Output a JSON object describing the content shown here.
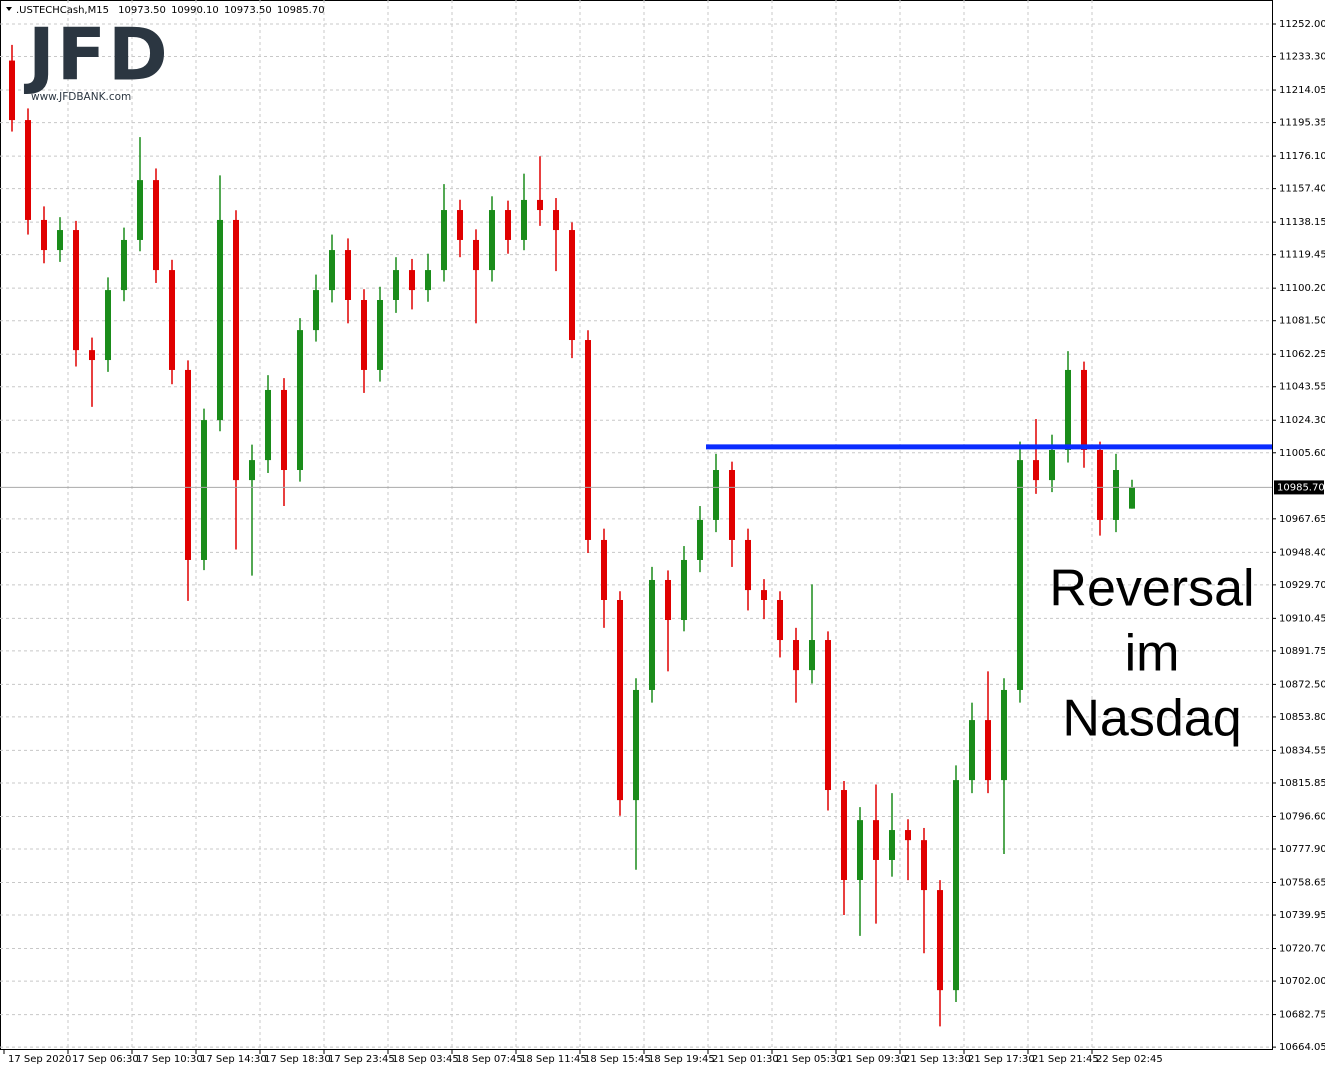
{
  "chart_data": {
    "type": "candlestick",
    "symbol": ".USTECHCash,M15",
    "header_values": [
      {
        "value": 10973.5,
        "label": "10973.50"
      },
      {
        "value": 10990.1,
        "label": "10990.10"
      },
      {
        "value": 10973.5,
        "label": "10973.50"
      },
      {
        "value": 10985.7,
        "label": "10985.70"
      }
    ],
    "logo": "JFD",
    "logo_url": "www.JFDBANK.com",
    "annotation": [
      "Reversal",
      "im",
      "Nasdaq"
    ],
    "up_color": "#1a8c1a",
    "down_color": "#e00000",
    "level": {
      "value": 11009.0,
      "from": "21 Sep 01:30",
      "color": "#0a2cff"
    },
    "current_price": {
      "value": 10985.7,
      "label": "10985.70"
    },
    "grid": true,
    "ylim": [
      10662.4,
      11265.8
    ],
    "yticks": [
      {
        "value": 11252.0,
        "label": "11252.00"
      },
      {
        "value": 11233.3,
        "label": "11233.30"
      },
      {
        "value": 11214.05,
        "label": "11214.05"
      },
      {
        "value": 11195.35,
        "label": "11195.35"
      },
      {
        "value": 11176.1,
        "label": "11176.10"
      },
      {
        "value": 11157.4,
        "label": "11157.40"
      },
      {
        "value": 11138.15,
        "label": "11138.15"
      },
      {
        "value": 11119.45,
        "label": "11119.45"
      },
      {
        "value": 11100.2,
        "label": "11100.20"
      },
      {
        "value": 11081.5,
        "label": "11081.50"
      },
      {
        "value": 11062.25,
        "label": "11062.25"
      },
      {
        "value": 11043.55,
        "label": "11043.55"
      },
      {
        "value": 11024.3,
        "label": "11024.30"
      },
      {
        "value": 11005.6,
        "label": "11005.60"
      },
      {
        "value": 10967.65,
        "label": "10967.65"
      },
      {
        "value": 10948.4,
        "label": "10948.40"
      },
      {
        "value": 10929.7,
        "label": "10929.70"
      },
      {
        "value": 10910.45,
        "label": "10910.45"
      },
      {
        "value": 10891.75,
        "label": "10891.75"
      },
      {
        "value": 10872.5,
        "label": "10872.50"
      },
      {
        "value": 10853.8,
        "label": "10853.80"
      },
      {
        "value": 10834.55,
        "label": "10834.55"
      },
      {
        "value": 10815.85,
        "label": "10815.85"
      },
      {
        "value": 10796.6,
        "label": "10796.60"
      },
      {
        "value": 10777.9,
        "label": "10777.90"
      },
      {
        "value": 10758.65,
        "label": "10758.65"
      },
      {
        "value": 10739.95,
        "label": "10739.95"
      },
      {
        "value": 10720.7,
        "label": "10720.70"
      },
      {
        "value": 10702.0,
        "label": "10702.00"
      },
      {
        "value": 10682.75,
        "label": "10682.75"
      },
      {
        "value": 10664.05,
        "label": "10664.05"
      }
    ],
    "categories": [
      "17 Sep 2020",
      null,
      null,
      null,
      "17 Sep 06:30",
      null,
      null,
      null,
      "17 Sep 10:30",
      null,
      null,
      null,
      "17 Sep 14:30",
      null,
      null,
      null,
      "17 Sep 18:30",
      null,
      null,
      null,
      "17 Sep 23:45",
      null,
      null,
      null,
      "18 Sep 03:45",
      null,
      null,
      null,
      "18 Sep 07:45",
      null,
      null,
      null,
      "18 Sep 11:45",
      null,
      null,
      null,
      "18 Sep 15:45",
      null,
      null,
      null,
      "18 Sep 19:45",
      null,
      null,
      null,
      "21 Sep 01:30",
      null,
      null,
      null,
      "21 Sep 05:30",
      null,
      null,
      null,
      "21 Sep 09:30",
      null,
      null,
      null,
      "21 Sep 13:30",
      null,
      null,
      null,
      "21 Sep 17:30",
      null,
      null,
      null,
      "21 Sep 21:45",
      null,
      null,
      null,
      "22 Sep 02:45",
      null,
      null
    ],
    "open": [
      11231.0,
      11196.8,
      11139.4,
      11122.1,
      11133.6,
      11064.6,
      11058.9,
      11099.1,
      11127.9,
      11162.3,
      11110.6,
      11053.2,
      10944.0,
      11024.4,
      11139.4,
      10989.9,
      11001.4,
      11041.7,
      10995.7,
      11076.1,
      11099.1,
      11122.1,
      11093.4,
      11053.2,
      11093.4,
      11110.6,
      11099.1,
      11110.6,
      11145.1,
      11127.9,
      11110.6,
      11145.1,
      11127.9,
      11150.9,
      11145.1,
      11133.6,
      11070.4,
      10955.5,
      10921.0,
      10806.0,
      10869.3,
      10932.5,
      10909.5,
      10944.0,
      10967.0,
      10995.7,
      10955.5,
      10926.7,
      10921.0,
      10898.0,
      10880.7,
      10898.0,
      10811.8,
      10760.1,
      10794.5,
      10771.6,
      10788.8,
      10783.0,
      10754.3,
      10696.8,
      10817.5,
      10852.0,
      10817.5,
      10869.3,
      11001.4,
      10989.9,
      11007.2,
      11053.2,
      11007.2,
      10967.0,
      10973.5
    ],
    "high": [
      11240.0,
      11203.5,
      11147.2,
      11141.0,
      11138.9,
      11071.8,
      11106.4,
      11135.0,
      11187.0,
      11169.0,
      11116.5,
      11058.7,
      11031.0,
      11165.0,
      11145.0,
      11010.3,
      11050.2,
      11048.5,
      11083.0,
      11108.0,
      11131.0,
      11128.8,
      11099.6,
      11101.0,
      11118.0,
      11117.0,
      11120.0,
      11160.0,
      11151.0,
      11134.0,
      11153.0,
      11150.5,
      11166.0,
      11176.0,
      11152.0,
      11138.0,
      11076.0,
      10962.0,
      10926.0,
      10876.0,
      10940.0,
      10938.0,
      10952.0,
      10975.0,
      11005.0,
      11000.5,
      10962.0,
      10933.0,
      10926.0,
      10905.0,
      10930.0,
      10903.0,
      10817.0,
      10802.0,
      10815.0,
      10810.0,
      10795.0,
      10790.0,
      10760.0,
      10826.0,
      10862.0,
      10880.0,
      10876.0,
      11012.0,
      11025.0,
      11016.0,
      11064.0,
      11058.0,
      11012.0,
      11005.0,
      10990.1
    ],
    "low": [
      11190.2,
      11131.0,
      11114.5,
      11115.3,
      11055.2,
      11032.0,
      11052.1,
      11092.7,
      11121.4,
      11103.2,
      11045.0,
      10920.5,
      10938.2,
      11018.0,
      10950.0,
      10935.0,
      10994.0,
      10975.0,
      10989.0,
      11069.5,
      11092.0,
      11080.0,
      11040.0,
      11046.5,
      11086.0,
      11088.0,
      11092.4,
      11104.0,
      11118.0,
      11080.0,
      11104.0,
      11120.0,
      11122.0,
      11136.0,
      11110.0,
      11060.0,
      10948.0,
      10905.0,
      10797.0,
      10766.0,
      10862.0,
      10880.0,
      10903.0,
      10937.0,
      10960.0,
      10940.0,
      10915.0,
      10910.0,
      10888.0,
      10862.0,
      10873.0,
      10800.0,
      10740.0,
      10728.0,
      10735.0,
      10762.0,
      10760.0,
      10718.0,
      10676.0,
      10690.0,
      10810.0,
      10810.0,
      10775.0,
      10862.0,
      10982.0,
      10983.0,
      11000.0,
      10997.0,
      10958.0,
      10960.0,
      10973.5
    ],
    "close": [
      11196.8,
      11139.4,
      11122.1,
      11133.6,
      11064.6,
      11058.9,
      11099.1,
      11127.9,
      11162.3,
      11110.6,
      11053.2,
      10944.0,
      11024.4,
      11139.4,
      10989.9,
      11001.4,
      11041.7,
      10995.7,
      11076.1,
      11099.1,
      11122.1,
      11093.4,
      11053.2,
      11093.4,
      11110.6,
      11099.1,
      11110.6,
      11145.1,
      11127.9,
      11110.6,
      11145.1,
      11127.9,
      11150.9,
      11145.1,
      11133.6,
      11070.4,
      10955.5,
      10921.0,
      10806.0,
      10869.3,
      10932.5,
      10909.5,
      10944.0,
      10967.0,
      10995.7,
      10955.5,
      10926.7,
      10921.0,
      10898.0,
      10880.7,
      10898.0,
      10811.8,
      10760.1,
      10794.5,
      10771.6,
      10788.8,
      10783.0,
      10754.3,
      10696.8,
      10817.5,
      10852.0,
      10817.5,
      10869.3,
      11001.4,
      10989.9,
      11007.2,
      11053.2,
      11007.2,
      10967.0,
      10995.7,
      10985.7
    ]
  }
}
